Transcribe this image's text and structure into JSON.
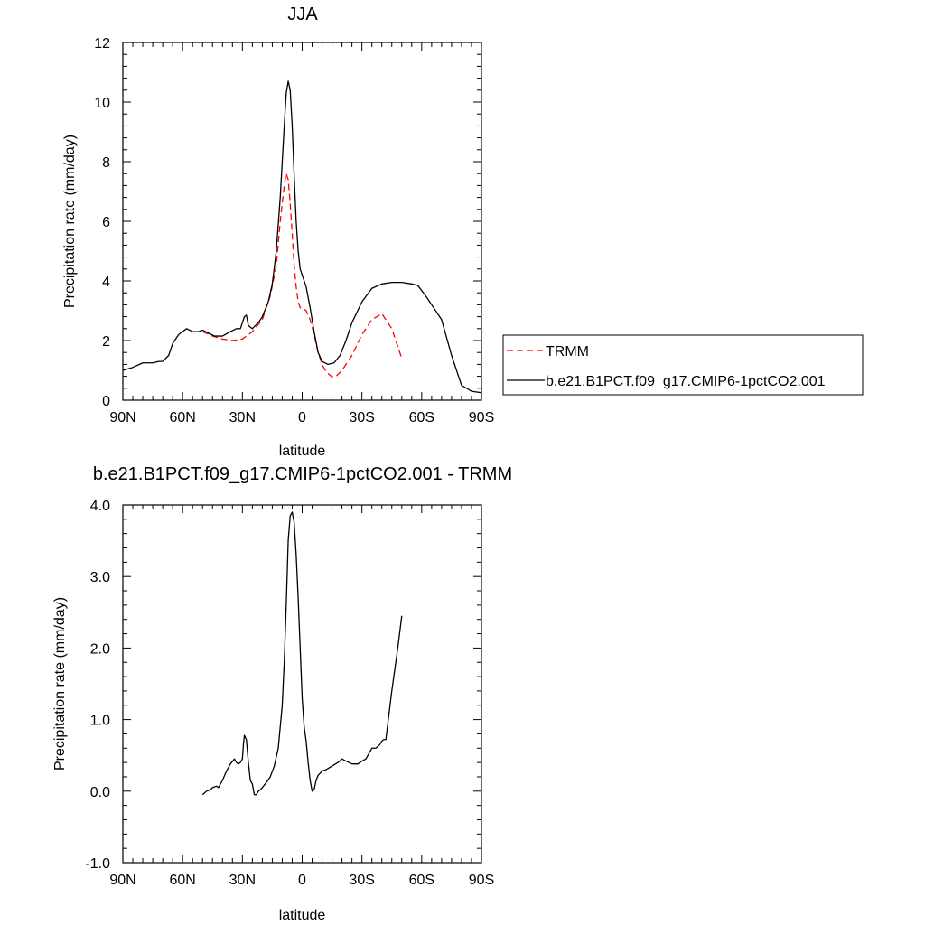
{
  "chart_data": [
    {
      "type": "line",
      "title": "JJA",
      "xlabel": "latitude",
      "ylabel": "Precipitation rate (mm/day)",
      "xlim": [
        90,
        -90
      ],
      "ylim": [
        0,
        12
      ],
      "x_ticks": [
        90,
        60,
        30,
        0,
        -30,
        -60,
        -90
      ],
      "x_tick_labels": [
        "90N",
        "60N",
        "30N",
        "0",
        "30S",
        "60S",
        "90S"
      ],
      "y_ticks": [
        0,
        2,
        4,
        6,
        8,
        10,
        12
      ],
      "y_tick_labels": [
        "0",
        "2",
        "4",
        "6",
        "8",
        "10",
        "12"
      ],
      "legend_position": "right",
      "series": [
        {
          "name": "TRMM",
          "color": "#ff0000",
          "dash": "dashed",
          "x": [
            50,
            45,
            40,
            35,
            30,
            25,
            20,
            16,
            13,
            11,
            10,
            9,
            8,
            7,
            6,
            5,
            4,
            3,
            2,
            1,
            0,
            -2,
            -4,
            -6,
            -8,
            -10,
            -12,
            -15,
            -17,
            -20,
            -25,
            -30,
            -35,
            -40,
            -45,
            -50
          ],
          "y": [
            2.3,
            2.15,
            2.05,
            2.0,
            2.05,
            2.3,
            2.7,
            3.5,
            4.5,
            6.0,
            6.6,
            7.2,
            7.6,
            7.4,
            6.6,
            5.6,
            4.5,
            3.8,
            3.3,
            3.1,
            3.1,
            3.0,
            2.7,
            2.2,
            1.6,
            1.2,
            0.95,
            0.78,
            0.8,
            1.0,
            1.5,
            2.2,
            2.7,
            2.9,
            2.4,
            1.4
          ]
        },
        {
          "name": "b.e21.B1PCT.f09_g17.CMIP6-1pctCO2.001",
          "color": "#000000",
          "dash": "solid",
          "x": [
            90,
            85,
            80,
            75,
            72,
            70,
            67,
            65,
            62,
            60,
            58,
            55,
            52,
            50,
            47,
            44,
            40,
            36,
            33,
            31,
            29,
            28,
            27,
            25,
            22,
            20,
            17,
            15,
            13,
            11,
            10,
            9,
            8,
            7,
            6,
            5,
            4,
            3,
            2,
            1,
            0,
            -2,
            -4,
            -6,
            -8,
            -10,
            -13,
            -16,
            -19,
            -22,
            -25,
            -30,
            -35,
            -40,
            -45,
            -50,
            -55,
            -58,
            -62,
            -66,
            -70,
            -75,
            -80,
            -85,
            -90
          ],
          "y": [
            1.0,
            1.1,
            1.25,
            1.25,
            1.3,
            1.3,
            1.5,
            1.9,
            2.2,
            2.3,
            2.4,
            2.3,
            2.3,
            2.35,
            2.25,
            2.15,
            2.15,
            2.3,
            2.4,
            2.4,
            2.8,
            2.85,
            2.5,
            2.4,
            2.6,
            2.8,
            3.3,
            3.9,
            5.0,
            6.8,
            8.0,
            9.2,
            10.3,
            10.7,
            10.4,
            9.2,
            7.5,
            6.0,
            5.0,
            4.4,
            4.2,
            3.8,
            3.1,
            2.3,
            1.6,
            1.3,
            1.2,
            1.25,
            1.5,
            2.0,
            2.6,
            3.3,
            3.75,
            3.9,
            3.95,
            3.95,
            3.9,
            3.85,
            3.5,
            3.1,
            2.7,
            1.5,
            0.5,
            0.3,
            0.25
          ]
        }
      ]
    },
    {
      "type": "line",
      "title": "b.e21.B1PCT.f09_g17.CMIP6-1pctCO2.001 - TRMM",
      "xlabel": "latitude",
      "ylabel": "Precipitation rate (mm/day)",
      "xlim": [
        90,
        -90
      ],
      "ylim": [
        -1.0,
        4.0
      ],
      "x_ticks": [
        90,
        60,
        30,
        0,
        -30,
        -60,
        -90
      ],
      "x_tick_labels": [
        "90N",
        "60N",
        "30N",
        "0",
        "30S",
        "60S",
        "90S"
      ],
      "y_ticks": [
        -1.0,
        0.0,
        1.0,
        2.0,
        3.0,
        4.0
      ],
      "y_tick_labels": [
        "-1.0",
        "0.0",
        "1.0",
        "2.0",
        "3.0",
        "4.0"
      ],
      "series": [
        {
          "color": "#000000",
          "dash": "solid",
          "x": [
            50,
            48,
            46,
            45,
            43,
            42,
            40,
            38,
            36,
            34,
            33,
            32,
            31,
            30,
            29.5,
            29,
            28,
            27,
            26,
            25,
            24,
            23,
            22,
            21,
            20,
            18,
            16,
            14,
            12,
            10,
            9,
            8,
            7,
            6,
            5,
            4,
            3,
            2,
            1,
            0,
            -1,
            -2,
            -3,
            -4,
            -5,
            -6,
            -7,
            -8,
            -10,
            -12,
            -15,
            -18,
            -20,
            -22,
            -25,
            -28,
            -30,
            -32,
            -35,
            -37,
            -39,
            -40,
            -41,
            -42,
            -45,
            -48,
            -50
          ],
          "y": [
            -0.05,
            0.0,
            0.02,
            0.05,
            0.07,
            0.05,
            0.15,
            0.28,
            0.38,
            0.45,
            0.4,
            0.38,
            0.4,
            0.45,
            0.65,
            0.78,
            0.72,
            0.4,
            0.15,
            0.1,
            -0.05,
            -0.05,
            0.0,
            0.02,
            0.05,
            0.12,
            0.2,
            0.35,
            0.6,
            1.2,
            1.8,
            2.6,
            3.5,
            3.85,
            3.9,
            3.75,
            3.3,
            2.7,
            2.0,
            1.3,
            0.9,
            0.7,
            0.4,
            0.15,
            0.0,
            0.02,
            0.15,
            0.22,
            0.28,
            0.3,
            0.35,
            0.4,
            0.45,
            0.42,
            0.38,
            0.38,
            0.42,
            0.45,
            0.6,
            0.6,
            0.65,
            0.7,
            0.72,
            0.72,
            1.4,
            2.0,
            2.45
          ]
        }
      ]
    }
  ]
}
